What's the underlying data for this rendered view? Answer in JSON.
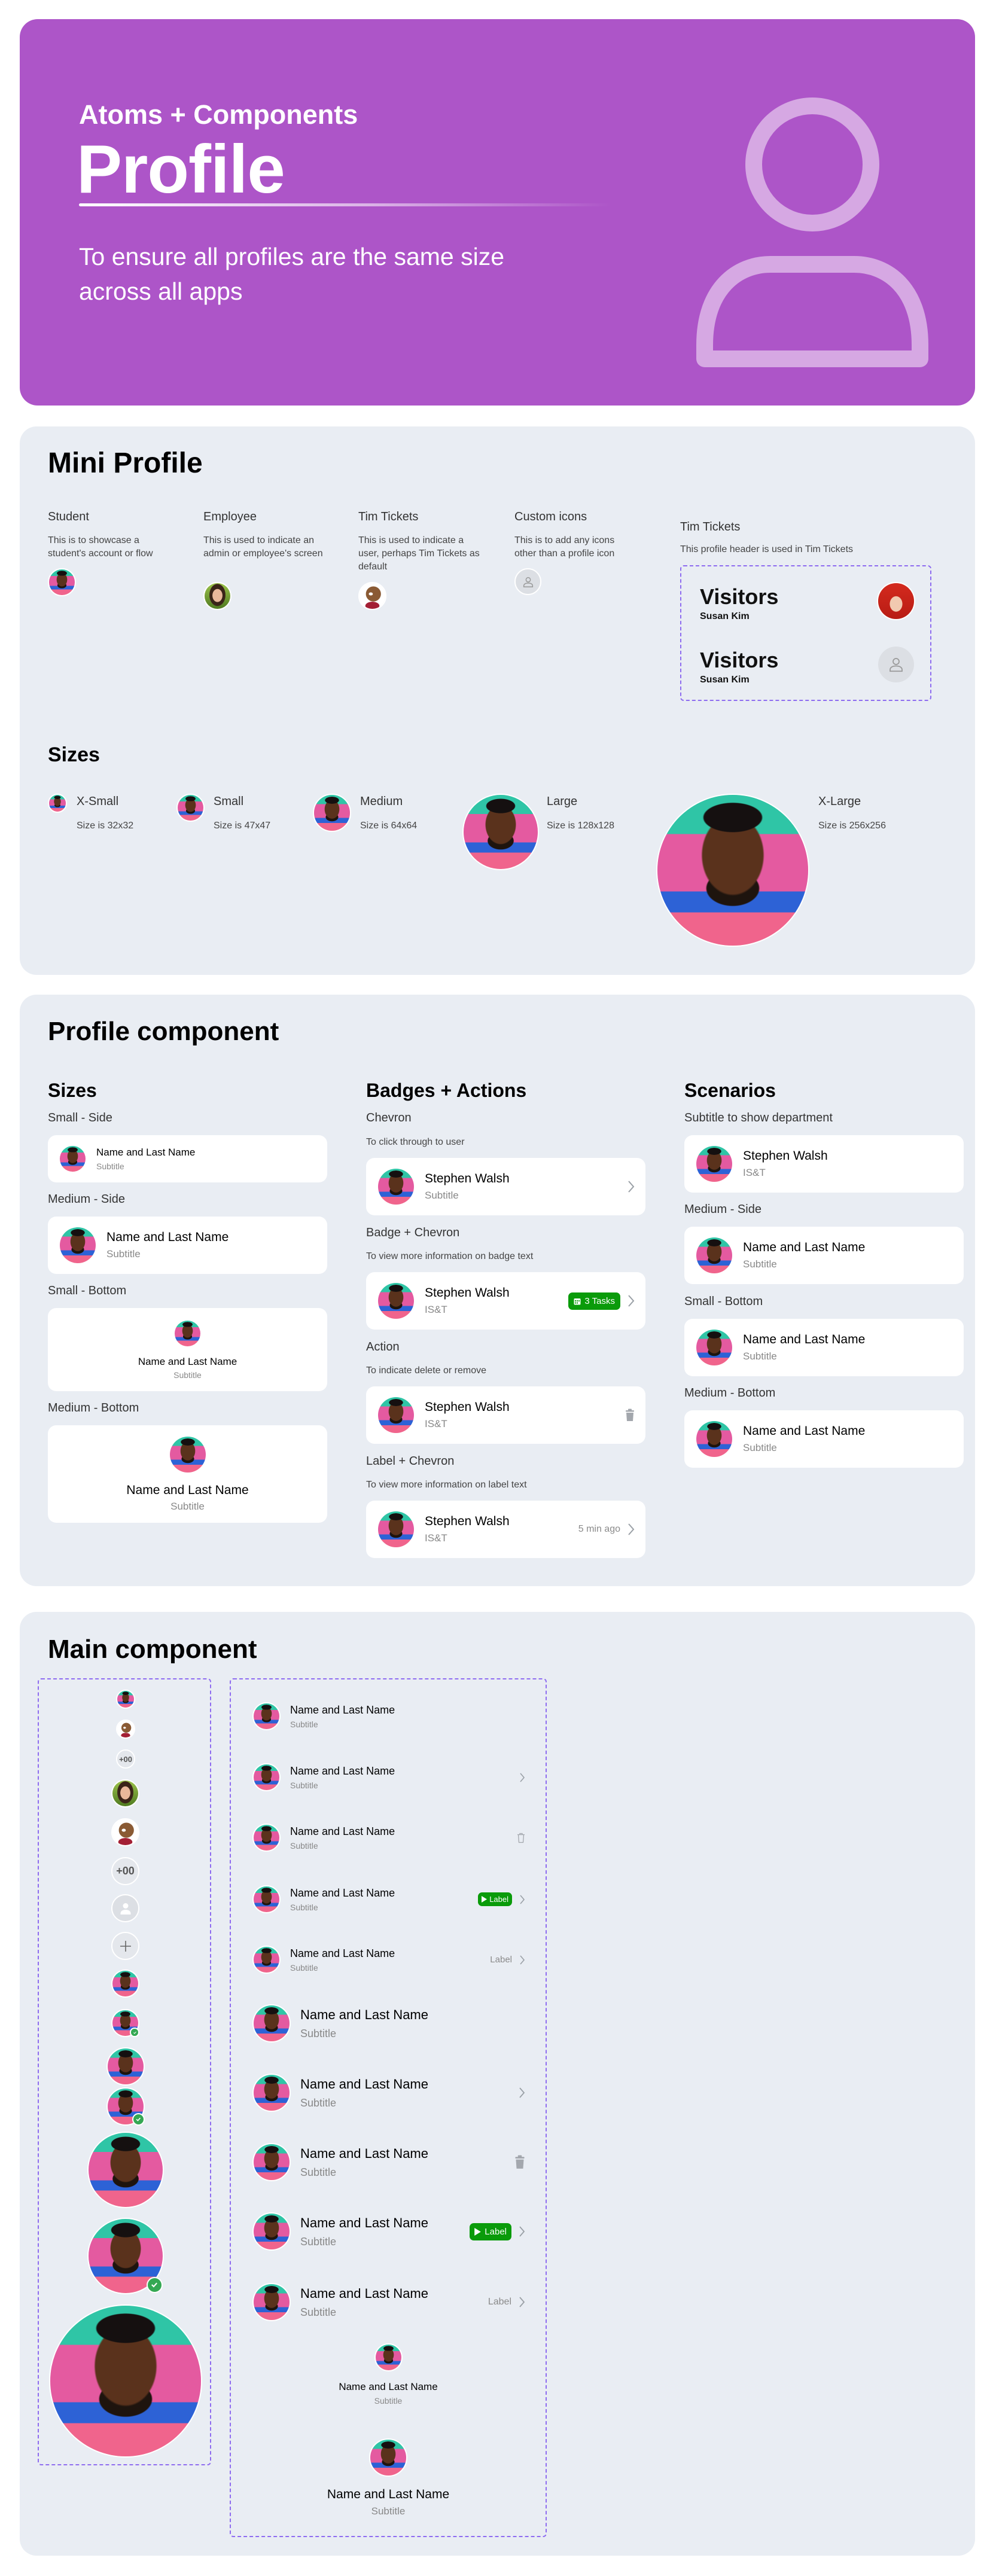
{
  "colors": {
    "accent": "#AD55C8",
    "panel": "#E9EDF3",
    "badge_green": "#0A9B0A",
    "check_green": "#34A853",
    "dashed_border": "#8E6CF0"
  },
  "hero": {
    "eyebrow": "Atoms + Components",
    "title": "Profile",
    "description": "To ensure all profiles are the same size across all apps",
    "icon": "person-outline-icon"
  },
  "mini_profile": {
    "title": "Mini Profile",
    "types": [
      {
        "label": "Student",
        "description": "This is to showcase a student's account or flow",
        "avatar": "student-photo"
      },
      {
        "label": "Employee",
        "description": "This is used to indicate an admin or employee's screen",
        "avatar": "employee-photo"
      },
      {
        "label": "Tim Tickets",
        "description": "This is used to indicate a user, perhaps Tim Tickets as default",
        "avatar": "bear-mascot"
      },
      {
        "label": "Custom icons",
        "description": "This is to add any icons other than a profile icon",
        "avatar": "person-icon"
      }
    ],
    "tim_tickets": {
      "label": "Tim Tickets",
      "description": "This profile header is used in Tim Tickets",
      "headers": [
        {
          "title": "Visitors",
          "name": "Susan Kim",
          "avatar": "visitor-photo"
        },
        {
          "title": "Visitors",
          "name": "Susan Kim",
          "avatar": "person-icon"
        }
      ]
    },
    "sizes": {
      "title": "Sizes",
      "items": [
        {
          "label": "X-Small",
          "size": "Size is 32x32"
        },
        {
          "label": "Small",
          "size": "Size is 47x47"
        },
        {
          "label": "Medium",
          "size": "Size is 64x64"
        },
        {
          "label": "Large",
          "size": "Size is 128x128"
        },
        {
          "label": "X-Large",
          "size": "Size is 256x256"
        }
      ]
    }
  },
  "profile_component": {
    "title": "Profile component",
    "sizes": {
      "heading": "Sizes",
      "items": [
        {
          "label": "Small - Side",
          "name": "Name and Last Name",
          "subtitle": "Subtitle"
        },
        {
          "label": "Medium - Side",
          "name": "Name and Last Name",
          "subtitle": "Subtitle"
        },
        {
          "label": "Small - Bottom",
          "name": "Name and Last Name",
          "subtitle": "Subtitle"
        },
        {
          "label": "Medium - Bottom",
          "name": "Name and Last Name",
          "subtitle": "Subtitle"
        }
      ]
    },
    "badges": {
      "heading": "Badges + Actions",
      "items": [
        {
          "label": "Chevron",
          "description": "To click through to user",
          "name": "Stephen Walsh",
          "subtitle": "Subtitle"
        },
        {
          "label": "Badge + Chevron",
          "description": "To view more information on badge text",
          "name": "Stephen Walsh",
          "subtitle": "IS&T",
          "badge": "3 Tasks"
        },
        {
          "label": "Action",
          "description": "To indicate delete or remove",
          "name": "Stephen Walsh",
          "subtitle": "IS&T"
        },
        {
          "label": "Label + Chevron",
          "description": "To view more information on label text",
          "name": "Stephen Walsh",
          "subtitle": "IS&T",
          "trailing_label": "5 min ago"
        }
      ]
    },
    "scenarios": {
      "heading": "Scenarios",
      "items": [
        {
          "label": "Subtitle to show department",
          "name": "Stephen Walsh",
          "subtitle": "IS&T"
        },
        {
          "label": "Medium - Side",
          "name": "Name and Last Name",
          "subtitle": "Subtitle"
        },
        {
          "label": "Small - Bottom",
          "name": "Name and Last Name",
          "subtitle": "Subtitle"
        },
        {
          "label": "Medium - Bottom",
          "name": "Name and Last Name",
          "subtitle": "Subtitle"
        }
      ]
    }
  },
  "main_component": {
    "title": "Main component",
    "count_label": "+00",
    "rows": {
      "name": "Name and Last Name",
      "subtitle": "Subtitle",
      "badge": "Label",
      "trailing_label": "Label"
    }
  }
}
